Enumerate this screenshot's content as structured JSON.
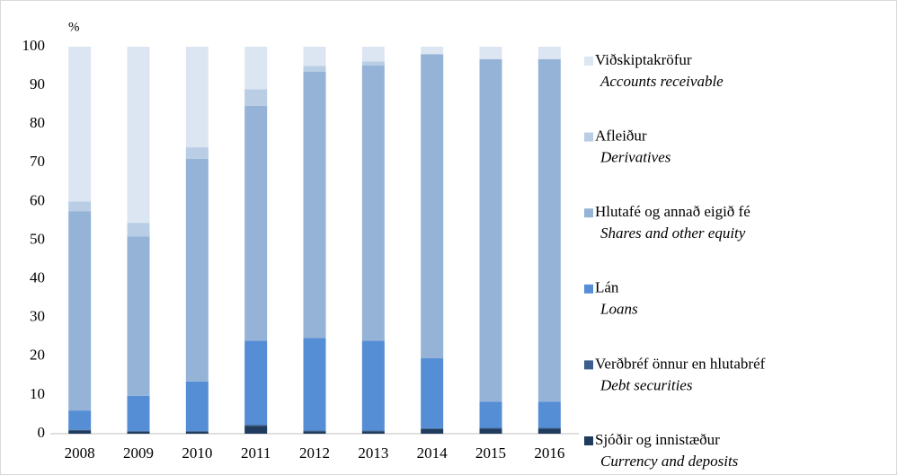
{
  "chart_data": {
    "type": "stacked_bar",
    "y_unit": "%",
    "categories": [
      "2008",
      "2009",
      "2010",
      "2011",
      "2012",
      "2013",
      "2014",
      "2015",
      "2016"
    ],
    "series": [
      {
        "name": "Sjóðir og innistæður",
        "name_en": "Currency and deposits",
        "color": "#1f3b5e",
        "values": [
          0.8,
          0.5,
          0.5,
          2,
          0.6,
          0.6,
          1.2,
          1.3,
          1.3
        ]
      },
      {
        "name": "Verðbréf önnur en hlutabréf",
        "name_en": "Debt securities",
        "color": "#3a5f8f",
        "values": [
          0.2,
          0.2,
          0.2,
          0.3,
          0.2,
          0.2,
          0.2,
          0.2,
          0.2
        ]
      },
      {
        "name": "Lán",
        "name_en": "Loans",
        "color": "#558ed5",
        "values": [
          5,
          9.1,
          12.8,
          21.7,
          23.9,
          23.2,
          18.1,
          6.8,
          6.8
        ]
      },
      {
        "name": "Hlutafé og annað eigið fé",
        "name_en": "Shares and other equity",
        "color": "#95b3d7",
        "values": [
          51.5,
          41.2,
          57.5,
          60.7,
          68.8,
          71.2,
          78.5,
          88.5,
          88.5
        ]
      },
      {
        "name": "Afleiður",
        "name_en": "Derivatives",
        "color": "#b9cde5",
        "values": [
          2.5,
          3.5,
          3,
          4.3,
          1.5,
          1,
          0.2,
          0,
          0
        ]
      },
      {
        "name": "Viðskiptakröfur",
        "name_en": "Accounts receivable",
        "color": "#dce6f2",
        "values": [
          40,
          45.5,
          26,
          11,
          5,
          3.8,
          1.8,
          3.2,
          3.2
        ]
      }
    ],
    "ylim": [
      0,
      100
    ],
    "yticks": [
      0,
      10,
      20,
      30,
      40,
      50,
      60,
      70,
      80,
      90,
      100
    ],
    "grid": false
  }
}
